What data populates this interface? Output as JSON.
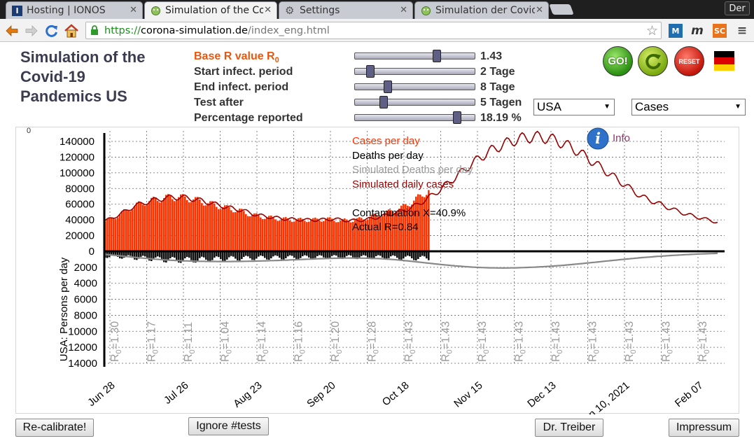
{
  "browser": {
    "tabs": [
      {
        "label": "Hosting | IONOS",
        "active": false
      },
      {
        "label": "Simulation of the Co",
        "active": true
      },
      {
        "label": "Settings",
        "active": false
      },
      {
        "label": "Simulation der Covid",
        "active": false
      }
    ],
    "user": "Der",
    "url_scheme": "https://",
    "url_host": "corona-simulation.de",
    "url_path": "/index_eng.html",
    "extensions": [
      "M",
      "m",
      "SC"
    ]
  },
  "page": {
    "title_lines": [
      "Simulation of the",
      "Covid-19",
      "Pandemics US"
    ],
    "params": [
      {
        "label": "Base R value R",
        "sub": "0",
        "value": "1.43",
        "fraction": 0.7
      },
      {
        "label": "Start infect. period",
        "value": "2 Tage",
        "fraction": 0.1
      },
      {
        "label": "End infect. period",
        "value": "8 Tage",
        "fraction": 0.26
      },
      {
        "label": "Test after",
        "value": "5 Tagen",
        "fraction": 0.22
      },
      {
        "label": "Percentage reported",
        "value": "18.19 %",
        "fraction": 0.88
      }
    ],
    "go_label": "GO!",
    "reset_label": "RESET",
    "country_select": "USA",
    "mode_select": "Cases",
    "buttons": {
      "recalibrate": "Re-calibrate!",
      "ignore_tests": "Ignore #tests",
      "dr_treiber": "Dr. Treiber",
      "impressum": "Impressum"
    }
  },
  "chart_data": {
    "type": "bar",
    "ylabel": "USA: Persons per day",
    "top_corner_label": "0",
    "yticks_upper": [
      "140000",
      "120000",
      "100000",
      "80000",
      "60000",
      "40000",
      "20000",
      "0"
    ],
    "yticks_lower": [
      "2000",
      "4000",
      "6000",
      "8000",
      "10000",
      "12000",
      "14000"
    ],
    "xticks": [
      "Jun 28",
      "Jul 26",
      "Aug 23",
      "Sep 20",
      "Oct 18",
      "Nov 15",
      "Dec 13",
      "Jan 10, 2021",
      "Feb 07"
    ],
    "r0_labels": [
      "1.30",
      "1.17",
      "1.11",
      "1.04",
      "1.14",
      "1.16",
      "1.20",
      "1.28",
      "1.43",
      "1.43",
      "1.43",
      "1.43",
      "1.43",
      "1.43",
      "1.43",
      "1.43",
      "1.43"
    ],
    "legend": [
      "Cases per day",
      "Deaths per day",
      "Simulated Deaths per day",
      "Simulated daily cases"
    ],
    "legend_colors": [
      "#ff3300",
      "#000000",
      "#999999",
      "#990000"
    ],
    "annotations": [
      "Contamination X=40.9%",
      "Actual R=0.84"
    ],
    "info_label": "Info",
    "ylim_cases": [
      0,
      150000
    ],
    "ylim_deaths": [
      0,
      14000
    ],
    "cases_weekly": [
      38000,
      47000,
      58000,
      64000,
      68000,
      69000,
      66000,
      61000,
      56000,
      52000,
      46000,
      43000,
      41000,
      40000,
      40000,
      41000,
      39000,
      40000,
      44000,
      49000,
      55000,
      66000,
      80000
    ],
    "deaths_weekly": [
      620,
      680,
      800,
      900,
      1050,
      1090,
      1070,
      1000,
      940,
      880,
      830,
      790,
      780,
      760,
      750,
      730,
      720,
      730,
      740,
      760,
      800,
      860
    ],
    "sim_cases_weekly": [
      38000,
      47000,
      58000,
      64000,
      68000,
      69000,
      66000,
      61000,
      56000,
      52000,
      46000,
      43000,
      41000,
      40000,
      40000,
      41000,
      39000,
      40000,
      44000,
      49000,
      55000,
      66000,
      80000,
      96000,
      112000,
      126000,
      136000,
      143000,
      146000,
      144000,
      137000,
      126000,
      112000,
      98000,
      84000,
      70000,
      62000,
      54000,
      47000,
      42000,
      37000
    ],
    "sim_deaths_weekly": [
      380,
      560,
      760,
      930,
      1080,
      1180,
      1240,
      1270,
      1280,
      1260,
      1220,
      1160,
      1090,
      1010,
      930,
      870,
      840,
      860,
      920,
      1050,
      1240,
      1450,
      1660,
      1840,
      1980,
      2060,
      2090,
      2060,
      1990,
      1880,
      1740,
      1560,
      1370,
      1170,
      980,
      800,
      650,
      520,
      410,
      320,
      250
    ]
  }
}
